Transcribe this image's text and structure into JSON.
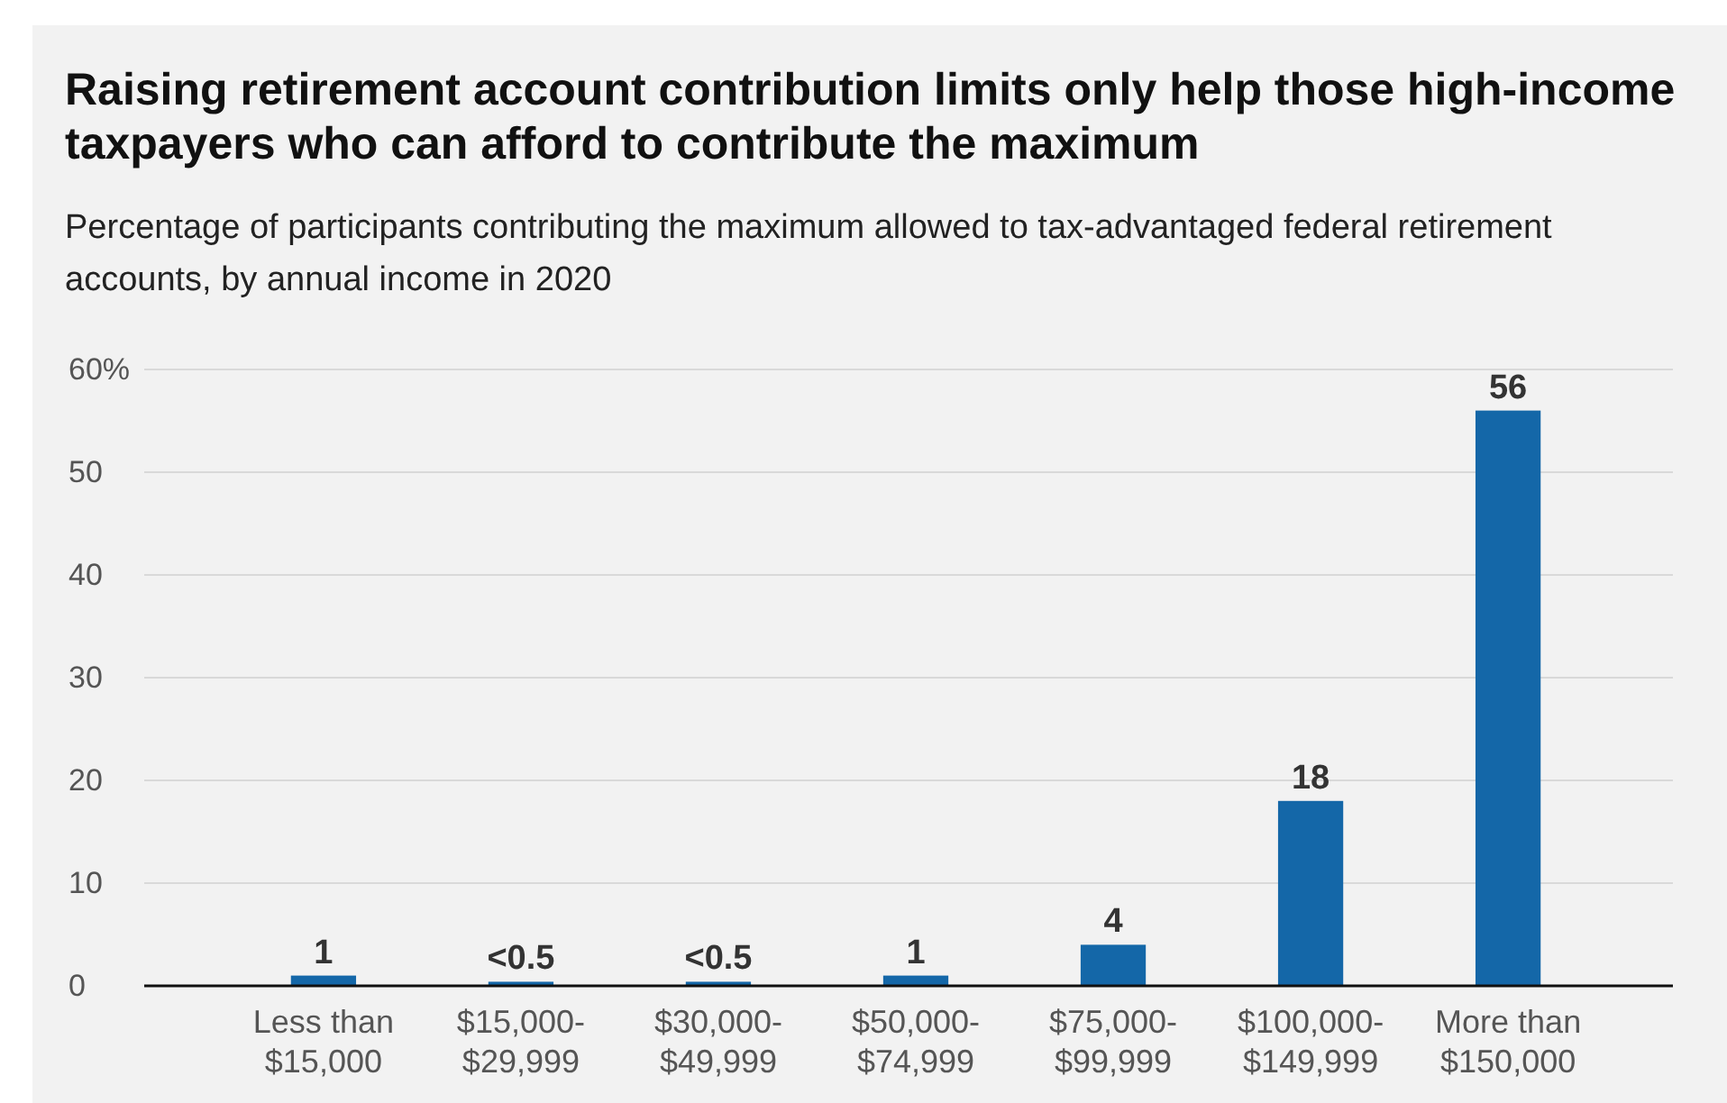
{
  "chart_data": {
    "type": "bar",
    "title": "Raising retirement account contribution limits only help those high-income taxpayers who can afford to contribute the maximum",
    "subtitle": "Percentage of participants contributing the maximum allowed to tax-advantaged federal retirement accounts, by annual income in 2020",
    "categories": [
      "Less than $15,000",
      "$15,000-$29,999",
      "$30,000-$49,999",
      "$50,000-$74,999",
      "$75,000-$99,999",
      "$100,000-$149,999",
      "More than $150,000"
    ],
    "values": [
      1,
      0.4,
      0.4,
      1,
      4,
      18,
      56
    ],
    "value_labels": [
      "1",
      "<0.5",
      "<0.5",
      "1",
      "4",
      "18",
      "56"
    ],
    "color": "#1467a8",
    "ylim": [
      0,
      60
    ],
    "yticks": [
      0,
      10,
      20,
      30,
      40,
      50,
      {
        "value": 60,
        "label": "60%"
      }
    ],
    "grid": "y"
  }
}
